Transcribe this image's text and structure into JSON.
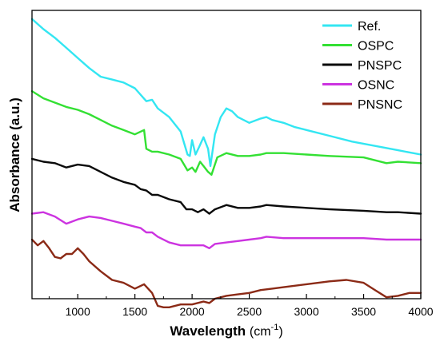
{
  "chart_data": {
    "type": "line",
    "xlabel": "Wavelength",
    "xlabel_unit_main": "(cm",
    "xlabel_unit_sup": "-1",
    "xlabel_unit_end": ")",
    "ylabel": "Absorbance (a.u.)",
    "xlim": [
      600,
      4000
    ],
    "ylim": [
      0,
      10
    ],
    "y_ticks_labeled": false,
    "grid": false,
    "legend_position": "top-right",
    "x_ticks": [
      1000,
      1500,
      2000,
      2500,
      3000,
      3500,
      4000
    ],
    "x_tick_labels": [
      "1000",
      "1500",
      "2000",
      "2500",
      "3000",
      "3500",
      "4000"
    ],
    "series": [
      {
        "name": "Ref.",
        "color": "#33e6f2",
        "x": [
          600,
          700,
          800,
          900,
          1000,
          1100,
          1200,
          1300,
          1400,
          1500,
          1600,
          1650,
          1700,
          1800,
          1900,
          1960,
          1980,
          2000,
          2030,
          2060,
          2100,
          2140,
          2160,
          2200,
          2250,
          2300,
          2350,
          2400,
          2500,
          2600,
          2650,
          2700,
          2800,
          2900,
          3000,
          3200,
          3400,
          3600,
          3800,
          4000
        ],
        "y": [
          9.7,
          9.35,
          9.05,
          8.7,
          8.35,
          8.0,
          7.7,
          7.6,
          7.5,
          7.3,
          6.85,
          6.9,
          6.6,
          6.3,
          5.8,
          5.0,
          4.95,
          5.5,
          5.0,
          5.25,
          5.6,
          5.2,
          4.6,
          5.7,
          6.3,
          6.6,
          6.5,
          6.3,
          6.1,
          6.25,
          6.3,
          6.2,
          6.1,
          5.95,
          5.85,
          5.65,
          5.45,
          5.3,
          5.15,
          5.0
        ]
      },
      {
        "name": "OSPC",
        "color": "#33e033",
        "x": [
          600,
          700,
          800,
          900,
          1000,
          1100,
          1200,
          1300,
          1400,
          1500,
          1580,
          1600,
          1650,
          1700,
          1800,
          1900,
          1960,
          2000,
          2030,
          2070,
          2100,
          2140,
          2170,
          2220,
          2300,
          2400,
          2500,
          2600,
          2650,
          2800,
          3000,
          3200,
          3500,
          3600,
          3700,
          3800,
          4000
        ],
        "y": [
          7.2,
          6.95,
          6.8,
          6.65,
          6.55,
          6.4,
          6.2,
          6.0,
          5.85,
          5.7,
          5.85,
          5.2,
          5.1,
          5.1,
          5.0,
          4.85,
          4.45,
          4.55,
          4.4,
          4.75,
          4.6,
          4.4,
          4.3,
          4.9,
          5.05,
          4.95,
          4.95,
          5.0,
          5.05,
          5.05,
          5.0,
          4.95,
          4.9,
          4.8,
          4.7,
          4.75,
          4.7
        ]
      },
      {
        "name": "PNSPC",
        "color": "#0a0a0a",
        "x": [
          600,
          700,
          800,
          900,
          1000,
          1100,
          1200,
          1300,
          1400,
          1500,
          1550,
          1600,
          1650,
          1700,
          1800,
          1900,
          1950,
          2000,
          2050,
          2100,
          2150,
          2200,
          2300,
          2400,
          2500,
          2600,
          2650,
          2800,
          3000,
          3200,
          3500,
          3700,
          3800,
          4000
        ],
        "y": [
          4.85,
          4.75,
          4.7,
          4.55,
          4.65,
          4.6,
          4.4,
          4.2,
          4.05,
          3.95,
          3.8,
          3.75,
          3.6,
          3.6,
          3.45,
          3.35,
          3.1,
          3.1,
          3.0,
          3.1,
          2.95,
          3.1,
          3.25,
          3.15,
          3.15,
          3.2,
          3.25,
          3.2,
          3.15,
          3.1,
          3.05,
          3.0,
          3.0,
          2.95
        ]
      },
      {
        "name": "OSNC",
        "color": "#cc33e0",
        "x": [
          600,
          700,
          800,
          900,
          1000,
          1100,
          1200,
          1300,
          1400,
          1500,
          1550,
          1600,
          1650,
          1700,
          1800,
          1900,
          2000,
          2100,
          2150,
          2200,
          2300,
          2400,
          2500,
          2600,
          2650,
          2800,
          3000,
          3200,
          3500,
          3700,
          3800,
          4000
        ],
        "y": [
          2.95,
          3.0,
          2.85,
          2.6,
          2.75,
          2.85,
          2.8,
          2.7,
          2.6,
          2.5,
          2.45,
          2.3,
          2.3,
          2.15,
          1.95,
          1.85,
          1.85,
          1.85,
          1.75,
          1.9,
          1.95,
          2.0,
          2.05,
          2.1,
          2.15,
          2.1,
          2.1,
          2.1,
          2.1,
          2.05,
          2.05,
          2.05
        ]
      },
      {
        "name": "PNSNC",
        "color": "#8b2a16",
        "x": [
          600,
          650,
          700,
          750,
          800,
          850,
          900,
          950,
          1000,
          1050,
          1100,
          1200,
          1300,
          1400,
          1500,
          1580,
          1650,
          1700,
          1750,
          1800,
          1900,
          2000,
          2100,
          2150,
          2200,
          2300,
          2400,
          2500,
          2600,
          2700,
          2800,
          3000,
          3200,
          3350,
          3500,
          3600,
          3700,
          3800,
          3900,
          4000
        ],
        "y": [
          2.05,
          1.85,
          2.0,
          1.75,
          1.45,
          1.4,
          1.55,
          1.55,
          1.75,
          1.55,
          1.3,
          0.95,
          0.65,
          0.55,
          0.35,
          0.5,
          0.2,
          -0.25,
          -0.3,
          -0.3,
          -0.2,
          -0.2,
          -0.1,
          -0.15,
          0.0,
          0.1,
          0.15,
          0.2,
          0.3,
          0.35,
          0.4,
          0.5,
          0.6,
          0.65,
          0.55,
          0.3,
          0.05,
          0.1,
          0.2,
          0.2
        ]
      }
    ]
  }
}
